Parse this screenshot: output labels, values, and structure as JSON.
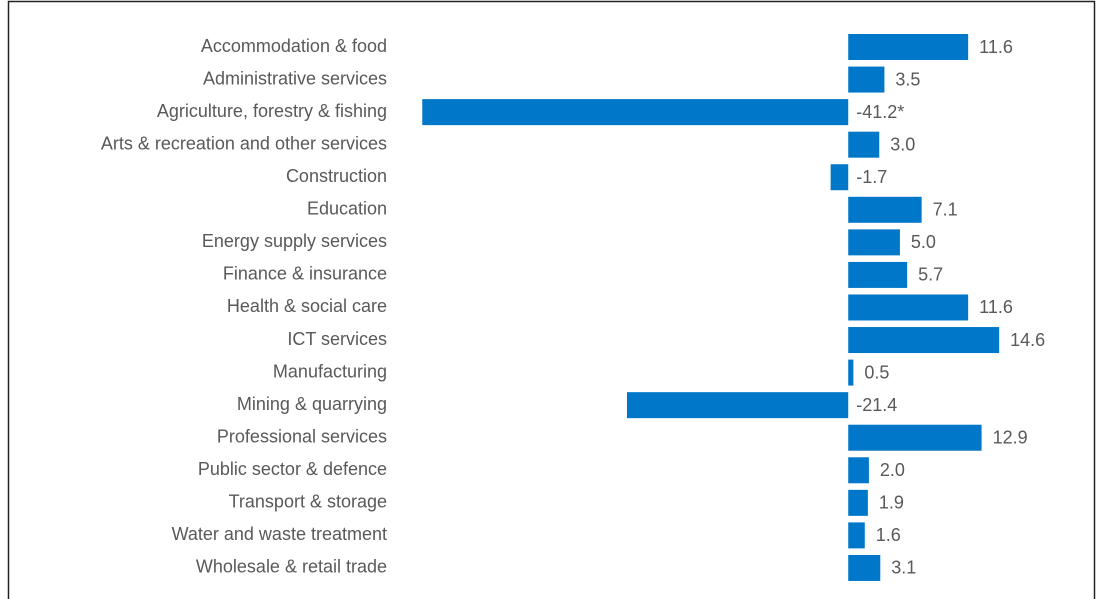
{
  "chart_data": {
    "type": "bar",
    "orientation": "horizontal",
    "categories": [
      "Accommodation & food",
      "Administrative services",
      "Agriculture, forestry & fishing",
      "Arts & recreation and other services",
      "Construction",
      "Education",
      "Energy supply services",
      "Finance & insurance",
      "Health & social care",
      "ICT services",
      "Manufacturing",
      "Mining & quarrying",
      "Professional services",
      "Public sector & defence",
      "Transport & storage",
      "Water and waste treatment",
      "Wholesale & retail trade"
    ],
    "values": [
      11.6,
      3.5,
      -41.2,
      3.0,
      -1.7,
      7.1,
      5.0,
      5.7,
      11.6,
      14.6,
      0.5,
      -21.4,
      12.9,
      2.0,
      1.9,
      1.6,
      3.1
    ],
    "value_labels": [
      "11.6",
      "3.5",
      "-41.2*",
      "3.0",
      "-1.7",
      "7.1",
      "5.0",
      "5.7",
      "11.6",
      "14.6",
      "0.5",
      "-21.4",
      "12.9",
      "2.0",
      "1.9",
      "1.6",
      "3.1"
    ],
    "color": "#0077c8",
    "xlim": [
      -42,
      20
    ]
  }
}
